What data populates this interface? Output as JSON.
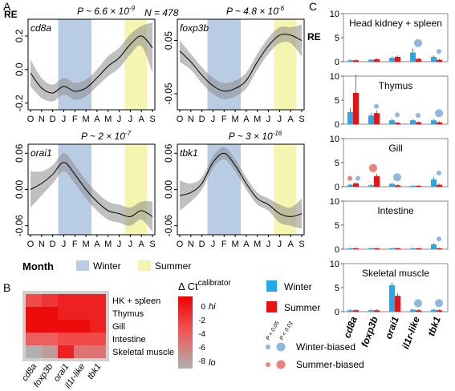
{
  "panels": {
    "a": "A",
    "b": "B",
    "c": "C"
  },
  "panel_a": {
    "ylabel": "RE",
    "n_label": "N = 478",
    "legend": {
      "title": "Month",
      "winter": "Winter",
      "summer": "Summer",
      "winter_color": "#b8cce4",
      "summer_color": "#f5f5b0"
    },
    "months": [
      "O",
      "N",
      "D",
      "J",
      "F",
      "M",
      "A",
      "M",
      "J",
      "J",
      "A",
      "S"
    ],
    "winter_span": [
      2.5,
      5.5
    ],
    "summer_span": [
      8.5,
      10.5
    ]
  },
  "panel_b": {
    "scale_title": "Δ Ct",
    "scale_superscript": "calibrator",
    "scale_ticks": [
      "0",
      "-2",
      "-4",
      "-6",
      "-8"
    ],
    "scale_hi": "hi",
    "scale_lo": "lo",
    "tissues": [
      "HK + spleen",
      "Thymus",
      "Gill",
      "Intestine",
      "Skeletal muscle"
    ],
    "genes": [
      "cd8a",
      "foxp3b",
      "orai1",
      "il1r-like",
      "tbk1"
    ]
  },
  "panel_c": {
    "ylabel": "RE",
    "genes": [
      "cd8a",
      "foxp3b",
      "orai1",
      "il1r-like",
      "tbk1"
    ],
    "yticks": [
      "0",
      "5",
      "10"
    ],
    "ylim": [
      0,
      10
    ],
    "legend": {
      "winter": "Winter",
      "summer": "Summer",
      "winter_color": "#22aaee",
      "summer_color": "#ee1111"
    },
    "p_labels": [
      "P < 0.05",
      "P < 0.01"
    ],
    "winter_biased": "Winter-biased",
    "summer_biased": "Summer-biased",
    "tissues": [
      {
        "name": "Head kidney + spleen"
      },
      {
        "name": "Thymus"
      },
      {
        "name": "Gill"
      },
      {
        "name": "Intestine"
      },
      {
        "name": "Skeletal muscle"
      }
    ]
  },
  "chart_data": [
    {
      "type": "line",
      "gene": "cd8a",
      "p_label": "P ~ 6.6 × 10",
      "p_exp": "-9",
      "x": [
        0,
        1,
        2,
        3,
        4,
        5,
        6,
        7,
        8,
        9,
        10,
        11
      ],
      "y": [
        -0.02,
        -0.11,
        -0.14,
        -0.1,
        -0.13,
        -0.11,
        -0.05,
        0.02,
        0.07,
        0.15,
        0.2,
        0.13
      ],
      "lower": [
        -0.1,
        -0.17,
        -0.19,
        -0.15,
        -0.18,
        -0.16,
        -0.1,
        -0.04,
        0.01,
        0.09,
        0.14,
        -0.02
      ],
      "upper": [
        0.06,
        -0.05,
        -0.09,
        -0.05,
        -0.08,
        -0.06,
        0.0,
        0.08,
        0.13,
        0.21,
        0.26,
        0.28
      ],
      "ylim": [
        -0.24,
        0.3
      ],
      "yticks": [
        -0.2,
        0.0,
        0.2
      ],
      "ytick_labels": [
        "-0.2",
        "0.0",
        "0.2"
      ]
    },
    {
      "type": "line",
      "gene": "foxp3b",
      "p_label": "P ~ 4.8 × 10",
      "p_exp": "-6",
      "x": [
        0,
        1,
        2,
        3,
        4,
        5,
        6,
        7,
        8,
        9,
        10,
        11
      ],
      "y": [
        0.03,
        0.01,
        -0.015,
        -0.035,
        -0.045,
        -0.04,
        -0.025,
        0.01,
        0.04,
        0.06,
        0.06,
        0.05
      ],
      "lower": [
        0.01,
        -0.005,
        -0.03,
        -0.05,
        -0.06,
        -0.055,
        -0.04,
        -0.005,
        0.025,
        0.045,
        0.045,
        0.02
      ],
      "upper": [
        0.05,
        0.025,
        0.0,
        -0.02,
        -0.03,
        -0.025,
        -0.01,
        0.025,
        0.055,
        0.075,
        0.075,
        0.08
      ],
      "ylim": [
        -0.08,
        0.09
      ],
      "yticks": [
        -0.05,
        0.05
      ],
      "ytick_labels": [
        "-0.05",
        "0.05"
      ]
    },
    {
      "type": "line",
      "gene": "orai1",
      "p_label": "P ~ 2 × 10",
      "p_exp": "-7",
      "x": [
        0,
        1,
        2,
        3,
        4,
        5,
        6,
        7,
        8,
        9,
        10,
        11
      ],
      "y": [
        0.0,
        0.01,
        0.025,
        0.045,
        0.025,
        0.0,
        -0.02,
        -0.035,
        -0.04,
        -0.045,
        -0.035,
        -0.045
      ],
      "lower": [
        -0.03,
        -0.01,
        0.01,
        0.03,
        0.01,
        -0.015,
        -0.035,
        -0.05,
        -0.055,
        -0.06,
        -0.05,
        -0.07
      ],
      "upper": [
        0.03,
        0.03,
        0.04,
        0.06,
        0.04,
        0.015,
        -0.005,
        -0.02,
        -0.025,
        -0.03,
        -0.02,
        -0.02
      ],
      "ylim": [
        -0.075,
        0.075
      ],
      "yticks": [
        -0.06,
        0.0,
        0.06
      ],
      "ytick_labels": [
        "-0.06",
        "0.00",
        "0.06"
      ]
    },
    {
      "type": "line",
      "gene": "tbk1",
      "p_label": "P ~ 3 × 10",
      "p_exp": "-16",
      "x": [
        0,
        1,
        2,
        3,
        4,
        5,
        6,
        7,
        8,
        9,
        10,
        11
      ],
      "y": [
        -0.01,
        -0.005,
        0.01,
        0.045,
        0.06,
        0.04,
        0.01,
        -0.015,
        -0.025,
        -0.04,
        -0.045,
        -0.04
      ],
      "lower": [
        -0.035,
        -0.02,
        0.0,
        0.035,
        0.05,
        0.03,
        0.0,
        -0.025,
        -0.035,
        -0.055,
        -0.06,
        -0.065
      ],
      "upper": [
        0.015,
        0.01,
        0.02,
        0.055,
        0.07,
        0.05,
        0.02,
        -0.005,
        -0.015,
        -0.025,
        -0.03,
        -0.015
      ],
      "ylim": [
        -0.075,
        0.075
      ],
      "yticks": [
        -0.06,
        0.0,
        0.06
      ],
      "ytick_labels": [
        "-0.06",
        "0.00",
        "0.06"
      ]
    },
    {
      "type": "heatmap",
      "rows": [
        "HK + spleen",
        "Thymus",
        "Gill",
        "Intestine",
        "Skeletal muscle"
      ],
      "columns": [
        "cd8a",
        "foxp3b",
        "orai1",
        "il1r-like",
        "tbk1"
      ],
      "values": [
        [
          -3,
          -2,
          -1,
          -1,
          -1
        ],
        [
          0,
          0,
          -1,
          -1,
          -1
        ],
        [
          0,
          0,
          0,
          0,
          -1
        ],
        [
          -4,
          -4,
          -3,
          -3,
          -3
        ],
        [
          -8,
          -7,
          -1,
          -5,
          -5
        ]
      ],
      "scale_range": [
        -8,
        0.5
      ]
    },
    {
      "type": "bar",
      "categories": [
        "cd8a",
        "foxp3b",
        "orai1",
        "il1r-like",
        "tbk1"
      ],
      "ylim": [
        0,
        10
      ],
      "tissues": [
        {
          "name": "Head kidney + spleen",
          "winter": [
            0.3,
            0.4,
            0.8,
            1.9,
            1.0
          ],
          "summer": [
            0.3,
            0.5,
            1.0,
            0.6,
            0.4
          ],
          "winter_err": [
            0.2,
            0.2,
            0.3,
            0.8,
            0.3
          ],
          "summer_err": [
            0.2,
            0.2,
            0.3,
            0.2,
            0.2
          ],
          "winter_dots": [
            0,
            0,
            0,
            2,
            1
          ],
          "summer_dots": [
            0,
            0,
            0,
            0,
            0
          ]
        },
        {
          "name": "Thymus",
          "winter": [
            2.5,
            1.8,
            0.8,
            0.8,
            0.8
          ],
          "summer": [
            6.5,
            2.3,
            0.3,
            0.4,
            0.4
          ],
          "winter_err": [
            0.9,
            0.5,
            0.3,
            0.2,
            0.3
          ],
          "summer_err": [
            3.8,
            0.6,
            0.2,
            0.2,
            0.2
          ],
          "winter_dots": [
            0,
            1,
            1,
            1,
            2
          ],
          "summer_dots": [
            0,
            0,
            0,
            0,
            0
          ]
        },
        {
          "name": "Gill",
          "winter": [
            0.4,
            0.3,
            0.6,
            0.2,
            1.5
          ],
          "summer": [
            0.7,
            2.2,
            0.3,
            0.2,
            0.4
          ],
          "winter_err": [
            0.2,
            0.2,
            0.2,
            0.1,
            0.5
          ],
          "summer_err": [
            0.2,
            0.5,
            0.2,
            0.1,
            0.2
          ],
          "winter_dots": [
            1,
            0,
            2,
            0,
            1
          ],
          "summer_dots": [
            1,
            2,
            0,
            0,
            0
          ]
        },
        {
          "name": "Intestine",
          "winter": [
            0.2,
            0.2,
            0.2,
            0.2,
            1.0
          ],
          "summer": [
            0.2,
            0.2,
            0.2,
            0.2,
            0.2
          ],
          "winter_err": [
            0.1,
            0.1,
            0.1,
            0.1,
            0.3
          ],
          "summer_err": [
            0.1,
            0.1,
            0.1,
            0.1,
            0.1
          ],
          "winter_dots": [
            0,
            0,
            0,
            0,
            1
          ],
          "summer_dots": [
            0,
            0,
            0,
            0,
            0
          ]
        },
        {
          "name": "Skeletal muscle",
          "winter": [
            0.3,
            0.3,
            5.5,
            0.4,
            0.4
          ],
          "summer": [
            0.3,
            0.3,
            3.3,
            0.3,
            0.3
          ],
          "winter_err": [
            0.2,
            0.2,
            0.6,
            0.2,
            0.2
          ],
          "summer_err": [
            0.2,
            0.2,
            0.5,
            0.2,
            0.2
          ],
          "winter_dots": [
            0,
            0,
            0,
            2,
            2
          ],
          "summer_dots": [
            0,
            0,
            0,
            0,
            0
          ]
        }
      ]
    }
  ]
}
